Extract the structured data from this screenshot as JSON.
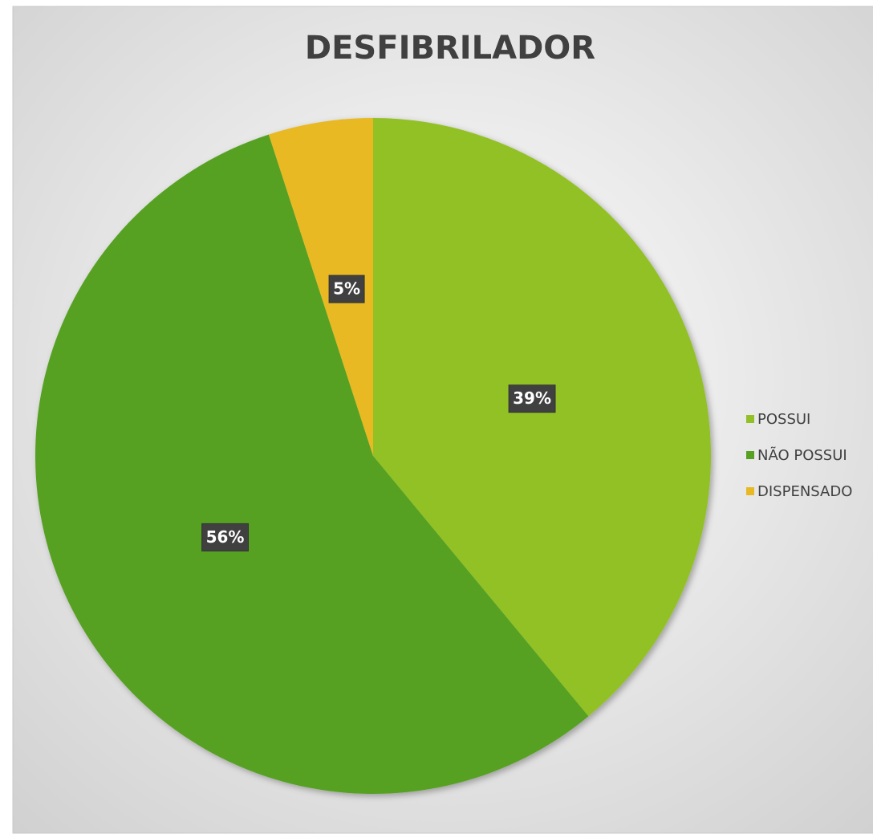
{
  "chart_data": {
    "type": "pie",
    "title": "DESFIBRILADOR",
    "categories": [
      "POSSUI",
      "NÃO POSSUI",
      "DISPENSADO"
    ],
    "values": [
      39,
      56,
      5
    ],
    "value_labels": [
      "39%",
      "56%",
      "5%"
    ],
    "colors": [
      "#92c125",
      "#56a121",
      "#e8b923"
    ],
    "legend": "right"
  }
}
